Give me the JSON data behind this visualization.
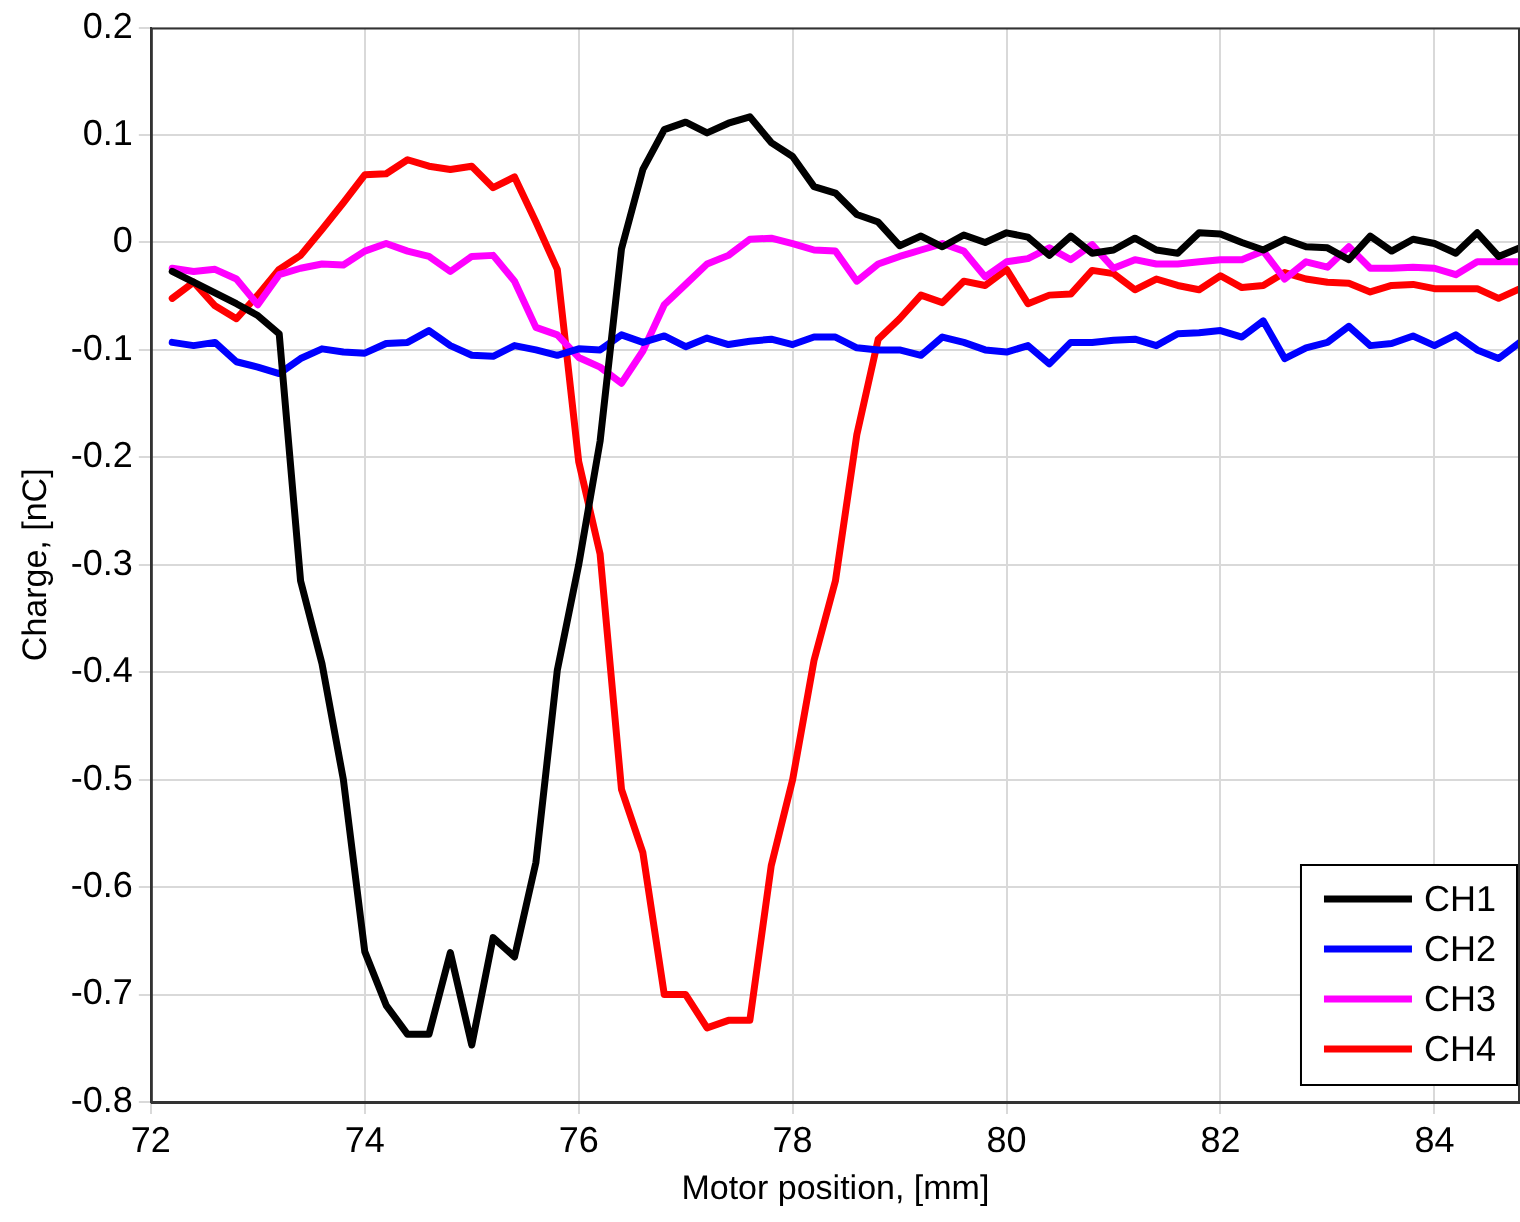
{
  "chart_data": {
    "type": "line",
    "xlabel": "Motor position, [mm]",
    "ylabel": "Charge, [nC]",
    "x": [
      72.2,
      72.4,
      72.6,
      72.8,
      73.0,
      73.2,
      73.4,
      73.6,
      73.8,
      74.0,
      74.2,
      74.4,
      74.6,
      74.8,
      75.0,
      75.2,
      75.4,
      75.6,
      75.8,
      76.0,
      76.2,
      76.4,
      76.6,
      76.8,
      77.0,
      77.2,
      77.4,
      77.6,
      77.8,
      78.0,
      78.2,
      78.4,
      78.6,
      78.8,
      79.0,
      79.2,
      79.4,
      79.6,
      79.8,
      80.0,
      80.2,
      80.4,
      80.6,
      80.8,
      81.0,
      81.2,
      81.4,
      81.6,
      81.8,
      82.0,
      82.2,
      82.4,
      82.6,
      82.8,
      83.0,
      83.2,
      83.4,
      83.6,
      83.8,
      84.0,
      84.2,
      84.4,
      84.6,
      84.8
    ],
    "series": [
      {
        "name": "CH1",
        "color": "#000000",
        "values": [
          -0.027,
          -0.037,
          -0.047,
          -0.057,
          -0.068,
          -0.085,
          -0.315,
          -0.392,
          -0.5,
          -0.66,
          -0.71,
          -0.737,
          -0.737,
          -0.661,
          -0.747,
          -0.647,
          -0.665,
          -0.577,
          -0.398,
          -0.3,
          -0.185,
          -0.006,
          0.068,
          0.105,
          0.112,
          0.102,
          0.111,
          0.117,
          0.093,
          0.08,
          0.052,
          0.046,
          0.026,
          0.019,
          -0.003,
          0.006,
          -0.004,
          0.007,
          0.0,
          0.009,
          0.005,
          -0.012,
          0.006,
          -0.01,
          -0.007,
          0.004,
          -0.007,
          -0.01,
          0.009,
          0.008,
          0.0,
          -0.007,
          0.003,
          -0.004,
          -0.005,
          -0.016,
          0.006,
          -0.008,
          0.003,
          -0.001,
          -0.01,
          0.009,
          -0.013,
          -0.005
        ]
      },
      {
        "name": "CH2",
        "color": "#0000ff",
        "values": [
          -0.093,
          -0.096,
          -0.093,
          -0.111,
          -0.116,
          -0.122,
          -0.108,
          -0.099,
          -0.102,
          -0.103,
          -0.094,
          -0.093,
          -0.082,
          -0.096,
          -0.105,
          -0.106,
          -0.096,
          -0.1,
          -0.105,
          -0.099,
          -0.1,
          -0.086,
          -0.093,
          -0.087,
          -0.097,
          -0.089,
          -0.095,
          -0.092,
          -0.09,
          -0.095,
          -0.088,
          -0.088,
          -0.098,
          -0.1,
          -0.1,
          -0.105,
          -0.088,
          -0.093,
          -0.1,
          -0.102,
          -0.096,
          -0.113,
          -0.093,
          -0.093,
          -0.091,
          -0.09,
          -0.096,
          -0.085,
          -0.084,
          -0.082,
          -0.088,
          -0.073,
          -0.108,
          -0.098,
          -0.093,
          -0.078,
          -0.096,
          -0.094,
          -0.087,
          -0.096,
          -0.086,
          -0.1,
          -0.108,
          -0.093
        ]
      },
      {
        "name": "CH3",
        "color": "#ff00ff",
        "values": [
          -0.024,
          -0.027,
          -0.025,
          -0.034,
          -0.058,
          -0.03,
          -0.024,
          -0.02,
          -0.021,
          -0.008,
          -0.001,
          -0.008,
          -0.013,
          -0.027,
          -0.013,
          -0.012,
          -0.036,
          -0.079,
          -0.086,
          -0.107,
          -0.116,
          -0.131,
          -0.101,
          -0.058,
          -0.039,
          -0.02,
          -0.012,
          0.003,
          0.004,
          -0.001,
          -0.007,
          -0.008,
          -0.036,
          -0.02,
          -0.013,
          -0.007,
          -0.001,
          -0.008,
          -0.032,
          -0.018,
          -0.015,
          -0.005,
          -0.016,
          -0.002,
          -0.024,
          -0.016,
          -0.02,
          -0.02,
          -0.018,
          -0.016,
          -0.016,
          -0.008,
          -0.034,
          -0.018,
          -0.023,
          -0.004,
          -0.024,
          -0.024,
          -0.023,
          -0.024,
          -0.03,
          -0.018,
          -0.018,
          -0.018
        ]
      },
      {
        "name": "CH4",
        "color": "#ff0000",
        "values": [
          -0.052,
          -0.037,
          -0.059,
          -0.071,
          -0.049,
          -0.025,
          -0.012,
          0.012,
          0.037,
          0.063,
          0.064,
          0.077,
          0.071,
          0.068,
          0.071,
          0.051,
          0.061,
          0.019,
          -0.025,
          -0.204,
          -0.29,
          -0.509,
          -0.568,
          -0.7,
          -0.7,
          -0.731,
          -0.724,
          -0.724,
          -0.58,
          -0.5,
          -0.389,
          -0.315,
          -0.179,
          -0.09,
          -0.071,
          -0.049,
          -0.056,
          -0.036,
          -0.04,
          -0.025,
          -0.057,
          -0.049,
          -0.048,
          -0.026,
          -0.029,
          -0.044,
          -0.034,
          -0.04,
          -0.044,
          -0.031,
          -0.042,
          -0.04,
          -0.028,
          -0.034,
          -0.037,
          -0.038,
          -0.046,
          -0.04,
          -0.039,
          -0.043,
          -0.043,
          -0.043,
          -0.052,
          -0.043
        ]
      }
    ],
    "xlim": [
      72,
      84.8
    ],
    "xticks": [
      72,
      74,
      76,
      78,
      80,
      82,
      84
    ],
    "ylim": [
      -0.8,
      0.2
    ],
    "yticks": [
      -0.8,
      -0.7,
      -0.6,
      -0.5,
      -0.4,
      -0.3,
      -0.2,
      -0.1,
      0,
      0.1,
      0.2
    ],
    "grid": true,
    "legend": "bottom right",
    "marker": "none",
    "line_style": "solid"
  }
}
